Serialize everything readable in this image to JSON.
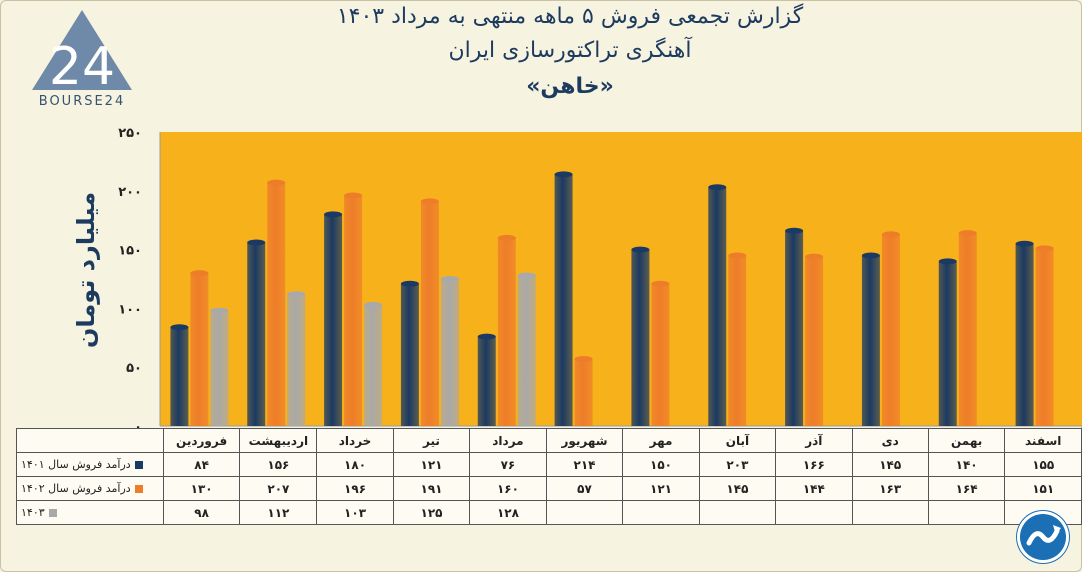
{
  "title_line1": "گزارش تجمعی فروش ۵ ماهه منتهی به مرداد ۱۴۰۳",
  "title_line2": "آهنگری تراکتورسازی ایران",
  "title_line3": "«خاهن»",
  "logo_text": "BOURSE24",
  "logo_mark": "24",
  "chart_data": {
    "type": "bar",
    "ylabel": "میلیارد تومان",
    "ylim": [
      0,
      250
    ],
    "yticks": [
      "۰",
      "۵۰",
      "۱۰۰",
      "۱۵۰",
      "۲۰۰",
      "۲۵۰"
    ],
    "ytick_values": [
      0,
      50,
      100,
      150,
      200,
      250
    ],
    "categories": [
      "فروردین",
      "اردیبهشت",
      "خرداد",
      "تیر",
      "مرداد",
      "شهریور",
      "مهر",
      "آبان",
      "آذر",
      "دی",
      "بهمن",
      "اسفند"
    ],
    "series": [
      {
        "name": "درآمد فروش سال ۱۴۰۱",
        "color": "#1b3a63",
        "values": [
          84,
          156,
          180,
          121,
          76,
          214,
          150,
          203,
          166,
          145,
          140,
          155
        ],
        "labels": [
          "۸۴",
          "۱۵۶",
          "۱۸۰",
          "۱۲۱",
          "۷۶",
          "۲۱۴",
          "۱۵۰",
          "۲۰۳",
          "۱۶۶",
          "۱۴۵",
          "۱۴۰",
          "۱۵۵"
        ]
      },
      {
        "name": "درآمد فروش سال ۱۴۰۲",
        "color": "#ee7d2a",
        "values": [
          130,
          207,
          196,
          191,
          160,
          57,
          121,
          145,
          144,
          163,
          164,
          151
        ],
        "labels": [
          "۱۳۰",
          "۲۰۷",
          "۱۹۶",
          "۱۹۱",
          "۱۶۰",
          "۵۷",
          "۱۲۱",
          "۱۴۵",
          "۱۴۴",
          "۱۶۳",
          "۱۶۴",
          "۱۵۱"
        ]
      },
      {
        "name": "۱۴۰۳",
        "color": "#a9a9a9",
        "values": [
          98,
          112,
          103,
          125,
          128,
          null,
          null,
          null,
          null,
          null,
          null,
          null
        ],
        "labels": [
          "۹۸",
          "۱۱۲",
          "۱۰۳",
          "۱۲۵",
          "۱۲۸",
          "",
          "",
          "",
          "",
          "",
          "",
          ""
        ]
      }
    ],
    "plot_background": "#f7b21b",
    "grid": false
  }
}
